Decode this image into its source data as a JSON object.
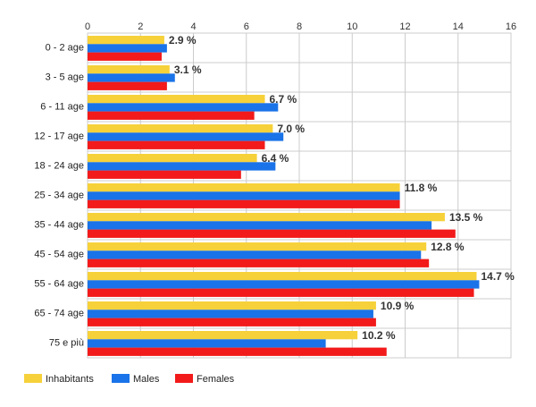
{
  "chart_data": {
    "type": "bar",
    "orientation": "horizontal",
    "title": "",
    "xlabel": "",
    "ylabel": "",
    "xlim": [
      0,
      16
    ],
    "x_ticks": [
      0,
      2,
      4,
      6,
      8,
      10,
      12,
      14,
      16
    ],
    "grid": true,
    "legend_position": "bottom-left",
    "categories": [
      "0 - 2 age",
      "3 - 5 age",
      "6 - 11 age",
      "12 - 17 age",
      "18 - 24 age",
      "25 - 34 age",
      "35 - 44 age",
      "45 - 54 age",
      "55 - 64 age",
      "65 - 74 age",
      "75 e più"
    ],
    "series": [
      {
        "name": "Inhabitants",
        "color": "#f6d13a",
        "values": [
          2.9,
          3.1,
          6.7,
          7.0,
          6.4,
          11.8,
          13.5,
          12.8,
          14.7,
          10.9,
          10.2
        ]
      },
      {
        "name": "Males",
        "color": "#1a73e8",
        "values": [
          3.0,
          3.3,
          7.2,
          7.4,
          7.1,
          11.8,
          13.0,
          12.6,
          14.8,
          10.8,
          9.0
        ]
      },
      {
        "name": "Females",
        "color": "#f21a1a",
        "values": [
          2.8,
          3.0,
          6.3,
          6.7,
          5.8,
          11.8,
          13.9,
          12.9,
          14.6,
          10.9,
          11.3
        ]
      }
    ],
    "data_labels": [
      "2.9 %",
      "3.1 %",
      "6.7 %",
      "7.0 %",
      "6.4 %",
      "11.8 %",
      "13.5 %",
      "12.8 %",
      "14.7 %",
      "10.9 %",
      "10.2 %"
    ]
  }
}
